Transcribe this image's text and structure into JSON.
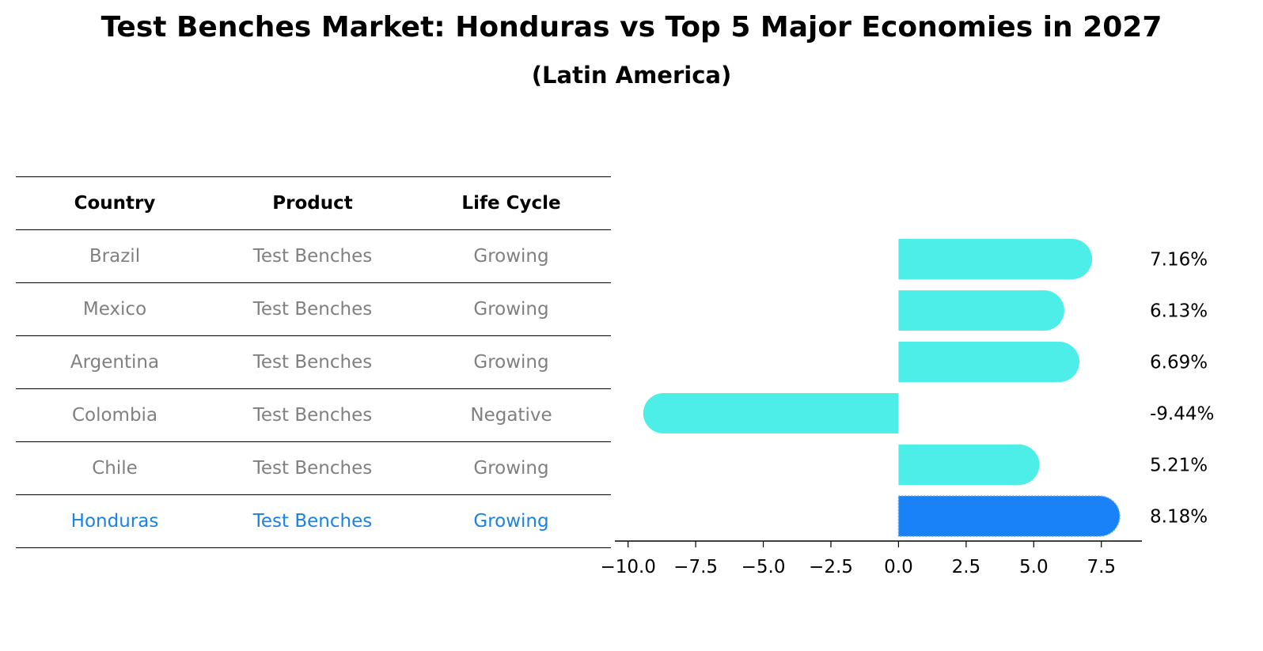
{
  "title": "Test Benches Market: Honduras vs Top 5 Major Economies in 2027",
  "subtitle": "(Latin America)",
  "table": {
    "headers": [
      "Country",
      "Product",
      "Life Cycle"
    ],
    "rows": [
      [
        "Brazil",
        "Test Benches",
        "Growing"
      ],
      [
        "Mexico",
        "Test Benches",
        "Growing"
      ],
      [
        "Argentina",
        "Test Benches",
        "Growing"
      ],
      [
        "Colombia",
        "Test Benches",
        "Negative"
      ],
      [
        "Chile",
        "Test Benches",
        "Growing"
      ],
      [
        "Honduras",
        "Test Benches",
        "Growing"
      ]
    ]
  },
  "colors": {
    "bar": "#4deee8",
    "highlight_bar": "#1a82f7",
    "highlight_text": "#1a82e2",
    "muted_text": "#808080"
  },
  "chart_data": {
    "type": "bar",
    "orientation": "horizontal",
    "title": "Test Benches Market: Honduras vs Top 5 Major Economies in 2027",
    "subtitle": "(Latin America)",
    "categories": [
      "Brazil",
      "Mexico",
      "Argentina",
      "Colombia",
      "Chile",
      "Honduras"
    ],
    "values": [
      7.16,
      6.13,
      6.69,
      -9.44,
      5.21,
      8.18
    ],
    "labels": [
      "7.16%",
      "6.13%",
      "6.69%",
      "-9.44%",
      "5.21%",
      "8.18%"
    ],
    "highlight": "Honduras",
    "xlim": [
      -10.4,
      9.0
    ],
    "xticks": [
      -10.0,
      -7.5,
      -5.0,
      -2.5,
      0.0,
      2.5,
      5.0,
      7.5
    ],
    "xtick_labels": [
      "−10.0",
      "−7.5",
      "−5.0",
      "−2.5",
      "0.0",
      "2.5",
      "5.0",
      "7.5"
    ],
    "xlabel": "",
    "ylabel": "",
    "grid": false
  }
}
